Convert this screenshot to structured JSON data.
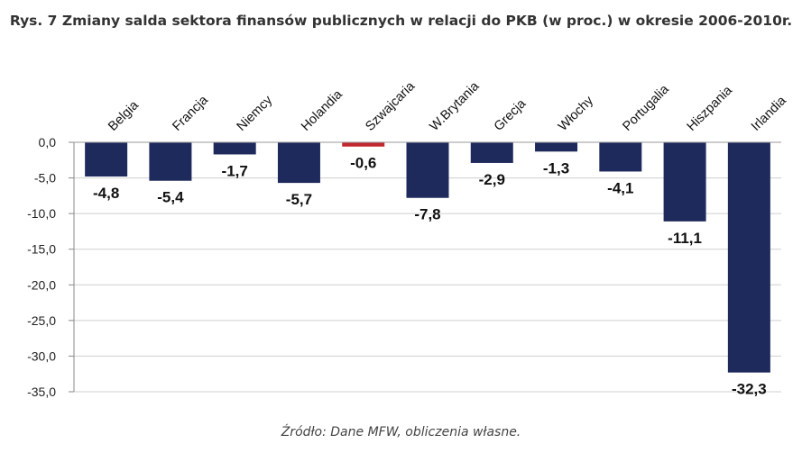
{
  "chart_data": {
    "type": "bar",
    "title": "Rys. 7 Zmiany salda sektora finansów publicznych w relacji do PKB (w proc.) w okresie 2006-2010r.",
    "source": "Źródło: Dane MFW, obliczenia własne.",
    "categories": [
      "Belgia",
      "Francja",
      "Niemcy",
      "Holandia",
      "Szwajcaria",
      "W.Brytania",
      "Grecja",
      "Włochy",
      "Portugalia",
      "Hiszpania",
      "Irlandia"
    ],
    "values": [
      -4.8,
      -5.4,
      -1.7,
      -5.7,
      -0.6,
      -7.8,
      -2.9,
      -1.3,
      -4.1,
      -11.1,
      -32.3
    ],
    "value_labels": [
      "-4,8",
      "-5,4",
      "-1,7",
      "-5,7",
      "-0,6",
      "-7,8",
      "-2,9",
      "-1,3",
      "-4,1",
      "-11,1",
      "-32,3"
    ],
    "ylim": [
      -35,
      0
    ],
    "y_ticks": [
      0,
      -5,
      -10,
      -15,
      -20,
      -25,
      -30,
      -35
    ],
    "y_tick_labels": [
      "0,0",
      "-5,0",
      "-10,0",
      "-15,0",
      "-20,0",
      "-25,0",
      "-30,0",
      "-35,0"
    ],
    "xlabel": "",
    "ylabel": "",
    "grid": true,
    "legend": "none",
    "bar_color": "#1f2a5c",
    "highlight_category": "Szwajcaria",
    "highlight_color": "#c0282d",
    "grid_color": "#cfcfcf"
  }
}
